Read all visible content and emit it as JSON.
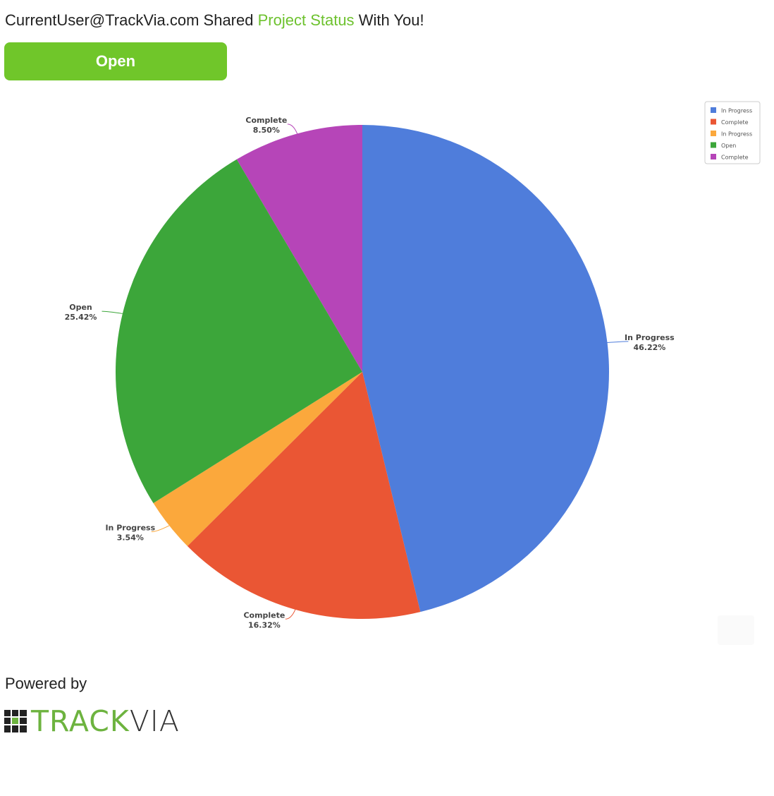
{
  "header": {
    "user": "CurrentUser@TrackVia.com",
    "shared_text": "Shared",
    "view_name": "Project Status",
    "suffix": "With You!"
  },
  "open_button": {
    "label": "Open"
  },
  "footer": {
    "powered_by": "Powered by",
    "logo_track": "TRACK",
    "logo_via": "VIA"
  },
  "colors": {
    "accent": "#6dc22e",
    "button": "#70c62a"
  },
  "chart_data": {
    "type": "pie",
    "title": "",
    "legend_position": "top-right",
    "slices": [
      {
        "label": "In Progress",
        "value": 46.22,
        "display": "46.22%",
        "color": "#4f7ddb"
      },
      {
        "label": "Complete",
        "value": 16.32,
        "display": "16.32%",
        "color": "#ea5634"
      },
      {
        "label": "In Progress",
        "value": 3.54,
        "display": "3.54%",
        "color": "#fba83c"
      },
      {
        "label": "Open",
        "value": 25.42,
        "display": "25.42%",
        "color": "#3ca63a"
      },
      {
        "label": "Complete",
        "value": 8.5,
        "display": "8.50%",
        "color": "#b645b8"
      }
    ]
  }
}
